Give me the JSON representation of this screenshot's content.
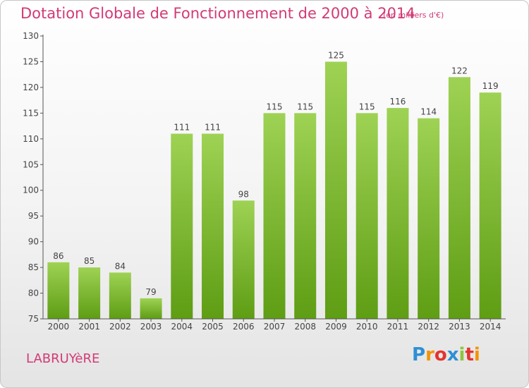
{
  "header": {
    "title": "Dotation Globale de Fonctionnement de 2000 à 2014",
    "unit": "(en milliers d'€)"
  },
  "footer": {
    "commune": "LABRUYèRE",
    "brand_letters": [
      "P",
      "r",
      "o",
      "x",
      "i",
      "t",
      "i"
    ],
    "brand_colors": [
      "#2f8fd4",
      "#f29400",
      "#e3342f",
      "#2f8fd4",
      "#8dc63f",
      "#e3342f",
      "#f29400"
    ]
  },
  "colors": {
    "bar_top": "#9ed254",
    "bar_bottom": "#5e9d14",
    "title": "#d23a75",
    "axis": "#555555"
  },
  "chart_data": {
    "type": "bar",
    "title": "Dotation Globale de Fonctionnement de 2000 à 2014",
    "unit": "(en milliers d'€)",
    "categories": [
      "2000",
      "2001",
      "2002",
      "2003",
      "2004",
      "2005",
      "2006",
      "2007",
      "2008",
      "2009",
      "2010",
      "2011",
      "2012",
      "2013",
      "2014"
    ],
    "values": [
      86,
      85,
      84,
      79,
      111,
      111,
      98,
      115,
      115,
      125,
      115,
      116,
      114,
      122,
      119
    ],
    "ylim": [
      75,
      130
    ],
    "yticks": [
      75,
      80,
      85,
      90,
      95,
      100,
      105,
      110,
      115,
      120,
      125,
      130
    ],
    "grid": false,
    "show_value_labels": true
  }
}
